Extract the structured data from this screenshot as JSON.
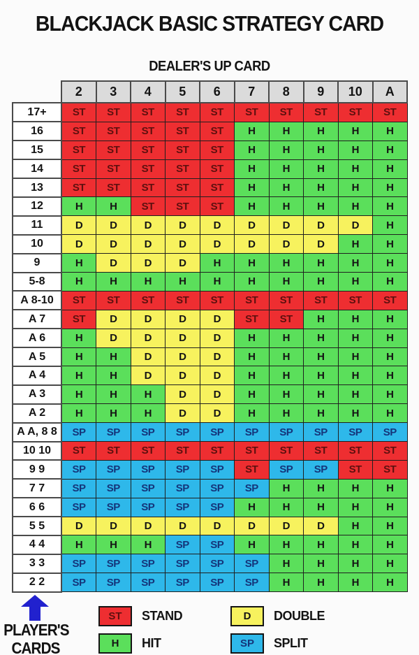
{
  "title": "BLACKJACK BASIC STRATEGY CARD",
  "subtitle": "DEALER'S UP CARD",
  "footer": {
    "line1": "PLAYER'S",
    "line2": "CARDS"
  },
  "colors": {
    "stand": "#EE2E31",
    "hit": "#5BDF5B",
    "double": "#F7F25E",
    "split": "#2EB8EA",
    "stand_text": "#5E100F",
    "split_text": "#15357A",
    "default_text": "#141414",
    "header_bg": "#DBDBDB",
    "arrow": "#2121CE"
  },
  "code_to_action": {
    "ST": "stand",
    "H": "hit",
    "D": "double",
    "SP": "split"
  },
  "chart_data": {
    "type": "table",
    "title": "BLACKJACK BASIC STRATEGY CARD",
    "column_axis_label": "DEALER'S UP CARD",
    "row_axis_label": "PLAYER'S CARDS",
    "columns": [
      "2",
      "3",
      "4",
      "5",
      "6",
      "7",
      "8",
      "9",
      "10",
      "A"
    ],
    "rows": [
      {
        "label": "17+",
        "cells": [
          "ST",
          "ST",
          "ST",
          "ST",
          "ST",
          "ST",
          "ST",
          "ST",
          "ST",
          "ST"
        ]
      },
      {
        "label": "16",
        "cells": [
          "ST",
          "ST",
          "ST",
          "ST",
          "ST",
          "H",
          "H",
          "H",
          "H",
          "H"
        ]
      },
      {
        "label": "15",
        "cells": [
          "ST",
          "ST",
          "ST",
          "ST",
          "ST",
          "H",
          "H",
          "H",
          "H",
          "H"
        ]
      },
      {
        "label": "14",
        "cells": [
          "ST",
          "ST",
          "ST",
          "ST",
          "ST",
          "H",
          "H",
          "H",
          "H",
          "H"
        ]
      },
      {
        "label": "13",
        "cells": [
          "ST",
          "ST",
          "ST",
          "ST",
          "ST",
          "H",
          "H",
          "H",
          "H",
          "H"
        ]
      },
      {
        "label": "12",
        "cells": [
          "H",
          "H",
          "ST",
          "ST",
          "ST",
          "H",
          "H",
          "H",
          "H",
          "H"
        ]
      },
      {
        "label": "11",
        "cells": [
          "D",
          "D",
          "D",
          "D",
          "D",
          "D",
          "D",
          "D",
          "D",
          "H"
        ]
      },
      {
        "label": "10",
        "cells": [
          "D",
          "D",
          "D",
          "D",
          "D",
          "D",
          "D",
          "D",
          "H",
          "H"
        ]
      },
      {
        "label": "9",
        "cells": [
          "H",
          "D",
          "D",
          "D",
          "H",
          "H",
          "H",
          "H",
          "H",
          "H"
        ]
      },
      {
        "label": "5-8",
        "cells": [
          "H",
          "H",
          "H",
          "H",
          "H",
          "H",
          "H",
          "H",
          "H",
          "H"
        ]
      },
      {
        "label": "A 8-10",
        "cells": [
          "ST",
          "ST",
          "ST",
          "ST",
          "ST",
          "ST",
          "ST",
          "ST",
          "ST",
          "ST"
        ]
      },
      {
        "label": "A 7",
        "cells": [
          "ST",
          "D",
          "D",
          "D",
          "D",
          "ST",
          "ST",
          "H",
          "H",
          "H"
        ]
      },
      {
        "label": "A 6",
        "cells": [
          "H",
          "D",
          "D",
          "D",
          "D",
          "H",
          "H",
          "H",
          "H",
          "H"
        ]
      },
      {
        "label": "A 5",
        "cells": [
          "H",
          "H",
          "D",
          "D",
          "D",
          "H",
          "H",
          "H",
          "H",
          "H"
        ]
      },
      {
        "label": "A 4",
        "cells": [
          "H",
          "H",
          "D",
          "D",
          "D",
          "H",
          "H",
          "H",
          "H",
          "H"
        ]
      },
      {
        "label": "A 3",
        "cells": [
          "H",
          "H",
          "H",
          "D",
          "D",
          "H",
          "H",
          "H",
          "H",
          "H"
        ]
      },
      {
        "label": "A 2",
        "cells": [
          "H",
          "H",
          "H",
          "D",
          "D",
          "H",
          "H",
          "H",
          "H",
          "H"
        ]
      },
      {
        "label": "A A, 8 8",
        "cells": [
          "SP",
          "SP",
          "SP",
          "SP",
          "SP",
          "SP",
          "SP",
          "SP",
          "SP",
          "SP"
        ]
      },
      {
        "label": "10 10",
        "cells": [
          "ST",
          "ST",
          "ST",
          "ST",
          "ST",
          "ST",
          "ST",
          "ST",
          "ST",
          "ST"
        ]
      },
      {
        "label": "9 9",
        "cells": [
          "SP",
          "SP",
          "SP",
          "SP",
          "SP",
          "ST",
          "SP",
          "SP",
          "ST",
          "ST"
        ]
      },
      {
        "label": "7 7",
        "cells": [
          "SP",
          "SP",
          "SP",
          "SP",
          "SP",
          "SP",
          "H",
          "H",
          "H",
          "H"
        ]
      },
      {
        "label": "6 6",
        "cells": [
          "SP",
          "SP",
          "SP",
          "SP",
          "SP",
          "H",
          "H",
          "H",
          "H",
          "H"
        ]
      },
      {
        "label": "5 5",
        "cells": [
          "D",
          "D",
          "D",
          "D",
          "D",
          "D",
          "D",
          "D",
          "H",
          "H"
        ]
      },
      {
        "label": "4 4",
        "cells": [
          "H",
          "H",
          "H",
          "SP",
          "SP",
          "H",
          "H",
          "H",
          "H",
          "H"
        ]
      },
      {
        "label": "3 3",
        "cells": [
          "SP",
          "SP",
          "SP",
          "SP",
          "SP",
          "SP",
          "H",
          "H",
          "H",
          "H"
        ]
      },
      {
        "label": "2 2",
        "cells": [
          "SP",
          "SP",
          "SP",
          "SP",
          "SP",
          "SP",
          "H",
          "H",
          "H",
          "H"
        ]
      }
    ],
    "legend": [
      {
        "code": "ST",
        "label": "STAND",
        "action": "stand"
      },
      {
        "code": "D",
        "label": "DOUBLE",
        "action": "double"
      },
      {
        "code": "H",
        "label": "HIT",
        "action": "hit"
      },
      {
        "code": "SP",
        "label": "SPLIT",
        "action": "split"
      }
    ]
  }
}
